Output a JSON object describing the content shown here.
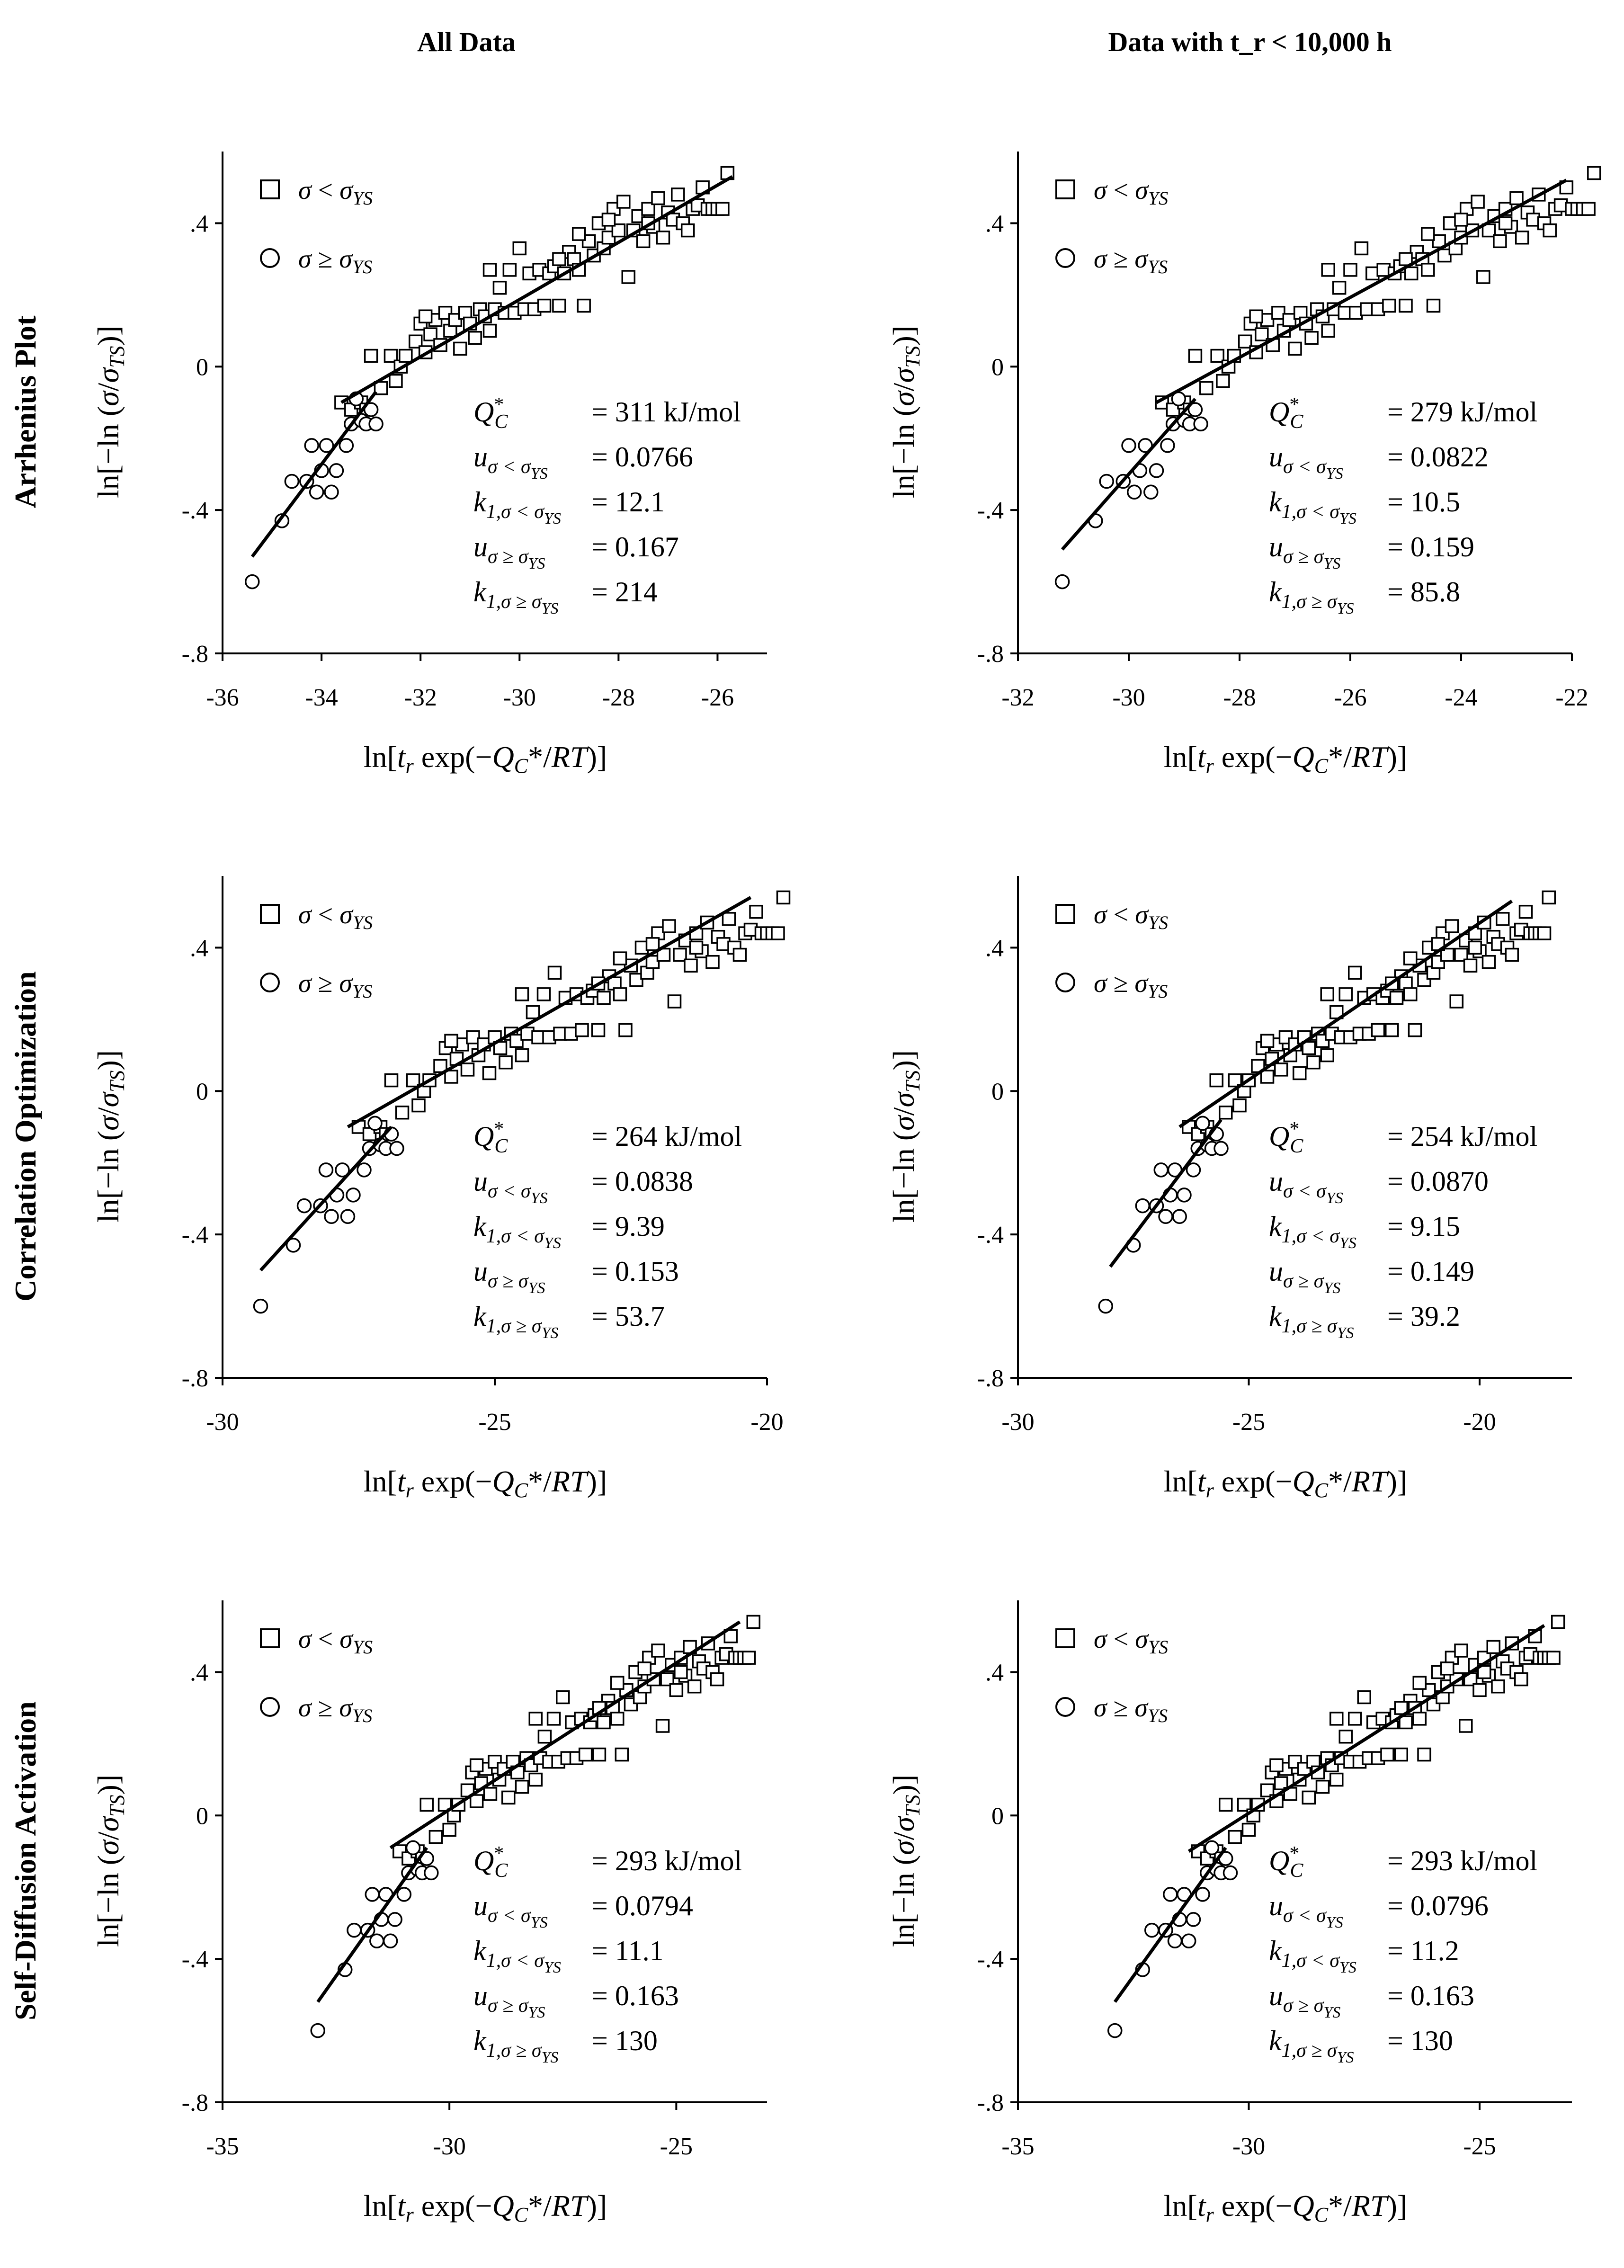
{
  "column_titles": [
    "All Data",
    "Data with t_r < 10,000 h"
  ],
  "row_titles": [
    "Arrhenius Plot",
    "Correlation Optimization",
    "Self-Diffusion Activation"
  ],
  "axis_labels": {
    "x": "ln[t_r exp(−Q_C*/RT)]",
    "y": "ln[−ln (σ/σ_TS)]"
  },
  "legend": [
    "σ < σ_YS",
    "σ ≥ σ_YS"
  ],
  "stat_labels": [
    "Q_C*",
    "u_σ<σYS",
    "k_1,σ<σYS",
    "u_σ≥σYS",
    "k_1,σ≥σYS"
  ],
  "chart_data": [
    {
      "type": "scatter",
      "row": "Arrhenius Plot",
      "column": "All Data",
      "title": "",
      "xlabel": "ln[t_r exp(−Q_C*/RT)]",
      "ylabel": "ln[−ln (σ/σ_TS)]",
      "xlim": [
        -36,
        -25
      ],
      "ylim": [
        -0.8,
        0.6
      ],
      "xticks": [
        -36,
        -34,
        -32,
        -30,
        -28,
        -26
      ],
      "yticks": [
        -0.8,
        -0.4,
        0,
        0.4
      ],
      "x_shift": 0,
      "lines": [
        {
          "x": [
            -33.6,
            -25.7
          ],
          "y": [
            -0.1,
            0.53
          ]
        },
        {
          "x": [
            -35.4,
            -32.9
          ],
          "y": [
            -0.53,
            -0.07
          ]
        }
      ],
      "stats": {
        "Q_C*": "= 311 kJ/mol",
        "u_low": "= 0.0766",
        "k1_low": "= 12.1",
        "u_high": "= 0.167",
        "k1_high": "= 214"
      }
    },
    {
      "type": "scatter",
      "row": "Arrhenius Plot",
      "column": "Data with t_r < 10,000 h",
      "title": "",
      "xlabel": "ln[t_r exp(−Q_C*/RT)]",
      "ylabel": "ln[−ln (σ/σ_TS)]",
      "xlim": [
        -32,
        -22
      ],
      "ylim": [
        -0.8,
        0.6
      ],
      "xticks": [
        -32,
        -30,
        -28,
        -26,
        -24,
        -22
      ],
      "yticks": [
        -0.8,
        -0.4,
        0,
        0.4
      ],
      "x_shift": 4.2,
      "lines": [
        {
          "x": [
            -29.5,
            -22.1
          ],
          "y": [
            -0.1,
            0.52
          ]
        },
        {
          "x": [
            -31.2,
            -28.8
          ],
          "y": [
            -0.51,
            -0.09
          ]
        }
      ],
      "stats": {
        "Q_C*": "= 279 kJ/mol",
        "u_low": "= 0.0822",
        "k1_low": "= 10.5",
        "u_high": "= 0.159",
        "k1_high": "= 85.8"
      }
    },
    {
      "type": "scatter",
      "row": "Correlation Optimization",
      "column": "All Data",
      "title": "",
      "xlabel": "ln[t_r exp(−Q_C*/RT)]",
      "ylabel": "ln[−ln (σ/σ_TS)]",
      "xlim": [
        -30,
        -20
      ],
      "ylim": [
        -0.8,
        0.6
      ],
      "xticks": [
        -30,
        -25,
        -20
      ],
      "yticks": [
        -0.8,
        -0.4,
        0,
        0.4
      ],
      "x_shift": 6.1,
      "lines": [
        {
          "x": [
            -27.7,
            -20.3
          ],
          "y": [
            -0.1,
            0.54
          ]
        },
        {
          "x": [
            -29.3,
            -26.9
          ],
          "y": [
            -0.5,
            -0.1
          ]
        }
      ],
      "stats": {
        "Q_C*": "= 264 kJ/mol",
        "u_low": "= 0.0838",
        "k1_low": "= 9.39",
        "u_high": "= 0.153",
        "k1_high": "= 53.7"
      }
    },
    {
      "type": "scatter",
      "row": "Correlation Optimization",
      "column": "Data with t_r < 10,000 h",
      "title": "",
      "xlabel": "ln[t_r exp(−Q_C*/RT)]",
      "ylabel": "ln[−ln (σ/σ_TS)]",
      "xlim": [
        -30,
        -18
      ],
      "ylim": [
        -0.8,
        0.6
      ],
      "xticks": [
        -30,
        -25,
        -20
      ],
      "yticks": [
        -0.8,
        -0.4,
        0,
        0.4
      ],
      "x_shift": 7.3,
      "lines": [
        {
          "x": [
            -26.5,
            -19.3
          ],
          "y": [
            -0.1,
            0.53
          ]
        },
        {
          "x": [
            -28,
            -25.6
          ],
          "y": [
            -0.49,
            -0.08
          ]
        }
      ],
      "stats": {
        "Q_C*": "= 254 kJ/mol",
        "u_low": "= 0.0870",
        "k1_low": "= 9.15",
        "u_high": "= 0.149",
        "k1_high": "= 39.2"
      }
    },
    {
      "type": "scatter",
      "row": "Self-Diffusion Activation",
      "column": "All Data",
      "title": "",
      "xlabel": "ln[t_r exp(−Q_C*/RT)]",
      "ylabel": "ln[−ln (σ/σ_TS)]",
      "xlim": [
        -35,
        -23
      ],
      "ylim": [
        -0.8,
        0.6
      ],
      "xticks": [
        -35,
        -30,
        -25
      ],
      "yticks": [
        -0.8,
        -0.4,
        0,
        0.4
      ],
      "x_shift": 2.5,
      "lines": [
        {
          "x": [
            -31.3,
            -23.6
          ],
          "y": [
            -0.09,
            0.54
          ]
        },
        {
          "x": [
            -32.9,
            -30.5
          ],
          "y": [
            -0.52,
            -0.09
          ]
        }
      ],
      "stats": {
        "Q_C*": "= 293 kJ/mol",
        "u_low": "= 0.0794",
        "k1_low": "= 11.1",
        "u_high": "= 0.163",
        "k1_high": "= 130"
      }
    },
    {
      "type": "scatter",
      "row": "Self-Diffusion Activation",
      "column": "Data with t_r < 10,000 h",
      "title": "",
      "xlabel": "ln[t_r exp(−Q_C*/RT)]",
      "ylabel": "ln[−ln (σ/σ_TS)]",
      "xlim": [
        -35,
        -23
      ],
      "ylim": [
        -0.8,
        0.6
      ],
      "xticks": [
        -35,
        -30,
        -25
      ],
      "yticks": [
        -0.8,
        -0.4,
        0,
        0.4
      ],
      "x_shift": 2.5,
      "lines": [
        {
          "x": [
            -31.3,
            -23.6
          ],
          "y": [
            -0.1,
            0.53
          ]
        },
        {
          "x": [
            -32.9,
            -30.5
          ],
          "y": [
            -0.52,
            -0.09
          ]
        }
      ],
      "stats": {
        "Q_C*": "= 293 kJ/mol",
        "u_low": "= 0.0796",
        "k1_low": "= 11.2",
        "u_high": "= 0.163",
        "k1_high": "= 130"
      }
    }
  ],
  "base_points": {
    "series_low": [
      [
        -33.6,
        -0.1
      ],
      [
        -33.4,
        -0.12
      ],
      [
        -33.2,
        -0.1
      ],
      [
        -33.1,
        -0.12
      ],
      [
        -33,
        0.03
      ],
      [
        -32.8,
        -0.06
      ],
      [
        -32.6,
        0.03
      ],
      [
        -32.5,
        -0.04
      ],
      [
        -32.4,
        0
      ],
      [
        -32.3,
        0.03
      ],
      [
        -32.1,
        0.07
      ],
      [
        -32,
        0.12
      ],
      [
        -31.9,
        0.04
      ],
      [
        -31.8,
        0.09
      ],
      [
        -31.7,
        0.13
      ],
      [
        -31.6,
        0.06
      ],
      [
        -31.5,
        0.15
      ],
      [
        -31.4,
        0.1
      ],
      [
        -31.3,
        0.13
      ],
      [
        -31.2,
        0.05
      ],
      [
        -31.1,
        0.15
      ],
      [
        -31,
        0.12
      ],
      [
        -30.9,
        0.08
      ],
      [
        -30.8,
        0.16
      ],
      [
        -30.7,
        0.14
      ],
      [
        -30.6,
        0.1
      ],
      [
        -30.5,
        0.16
      ],
      [
        -30.4,
        0.22
      ],
      [
        -30.3,
        0.15
      ],
      [
        -30.2,
        0.27
      ],
      [
        -30.1,
        0.15
      ],
      [
        -30,
        0.33
      ],
      [
        -29.9,
        0.16
      ],
      [
        -29.8,
        0.26
      ],
      [
        -29.7,
        0.16
      ],
      [
        -29.6,
        0.27
      ],
      [
        -29.5,
        0.17
      ],
      [
        -29.4,
        0.26
      ],
      [
        -29.3,
        0.28
      ],
      [
        -29.2,
        0.17
      ],
      [
        -29.1,
        0.26
      ],
      [
        -29,
        0.32
      ],
      [
        -28.9,
        0.3
      ],
      [
        -28.8,
        0.27
      ],
      [
        -28.7,
        0.17
      ],
      [
        -28.6,
        0.35
      ],
      [
        -28.5,
        0.31
      ],
      [
        -28.4,
        0.4
      ],
      [
        -28.3,
        0.33
      ],
      [
        -28.2,
        0.36
      ],
      [
        -28.1,
        0.44
      ],
      [
        -28,
        0.38
      ],
      [
        -27.9,
        0.46
      ],
      [
        -27.8,
        0.25
      ],
      [
        -27.7,
        0.38
      ],
      [
        -27.6,
        0.42
      ],
      [
        -27.5,
        0.35
      ],
      [
        -27.4,
        0.44
      ],
      [
        -27.3,
        0.39
      ],
      [
        -27.2,
        0.47
      ],
      [
        -27.1,
        0.36
      ],
      [
        -27,
        0.43
      ],
      [
        -26.9,
        0.41
      ],
      [
        -26.8,
        0.48
      ],
      [
        -26.7,
        0.4
      ],
      [
        -26.6,
        0.38
      ],
      [
        -26.5,
        0.44
      ],
      [
        -26.4,
        0.45
      ],
      [
        -26.3,
        0.5
      ],
      [
        -26.2,
        0.44
      ],
      [
        -26.1,
        0.44
      ],
      [
        -26,
        0.44
      ],
      [
        -25.9,
        0.44
      ],
      [
        -25.8,
        0.54
      ],
      [
        -31.9,
        0.14
      ],
      [
        -30.6,
        0.27
      ],
      [
        -29.2,
        0.3
      ],
      [
        -28.8,
        0.37
      ],
      [
        -28.2,
        0.41
      ],
      [
        -27.4,
        0.4
      ]
    ],
    "series_high": [
      [
        -35.4,
        -0.6
      ],
      [
        -34.8,
        -0.43
      ],
      [
        -34.6,
        -0.32
      ],
      [
        -34.3,
        -0.32
      ],
      [
        -34.2,
        -0.22
      ],
      [
        -34.1,
        -0.35
      ],
      [
        -34,
        -0.29
      ],
      [
        -33.9,
        -0.22
      ],
      [
        -33.8,
        -0.35
      ],
      [
        -33.7,
        -0.29
      ],
      [
        -33.5,
        -0.22
      ],
      [
        -33.4,
        -0.16
      ],
      [
        -33.2,
        -0.15
      ],
      [
        -33.1,
        -0.16
      ],
      [
        -33,
        -0.12
      ],
      [
        -32.9,
        -0.16
      ],
      [
        -33.3,
        -0.09
      ]
    ]
  }
}
